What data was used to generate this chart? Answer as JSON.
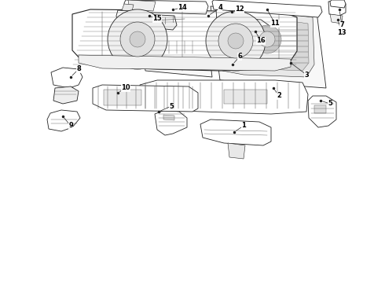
{
  "bg_color": "#ffffff",
  "line_color": "#222222",
  "fig_width": 4.9,
  "fig_height": 3.6,
  "dpi": 100,
  "label_fontsize": 6.0,
  "part_facecolor": "#ffffff",
  "part_edgecolor": "#222222",
  "part_lw": 0.6,
  "detail_lw": 0.4,
  "detail_color": "#555555"
}
